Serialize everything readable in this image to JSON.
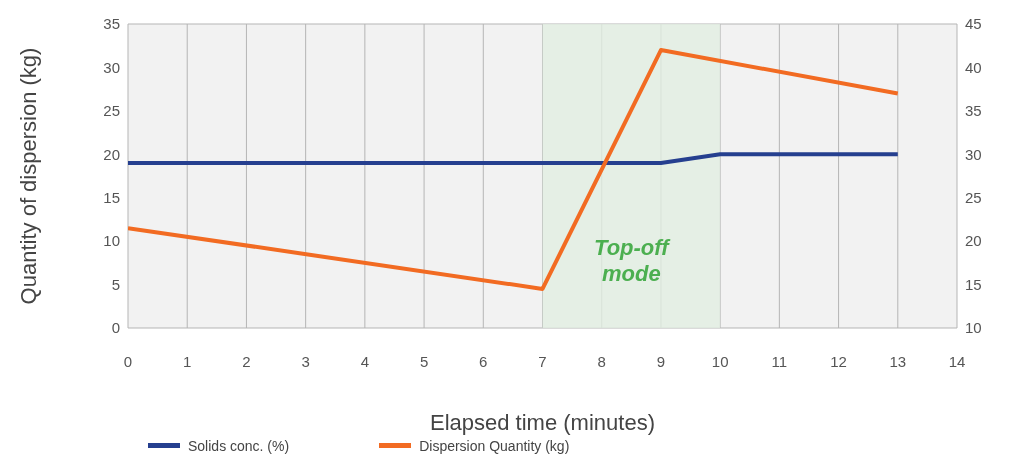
{
  "chart_data": {
    "type": "line",
    "xlabel": "Elapsed time  (minutes)",
    "ylabel": "Quantity of dispersion (kg)",
    "xlim": [
      0,
      14
    ],
    "xticks": [
      0,
      1,
      2,
      3,
      4,
      5,
      6,
      7,
      8,
      9,
      10,
      11,
      12,
      13,
      14
    ],
    "ylim": [
      0,
      35
    ],
    "yticks": [
      0,
      5,
      10,
      15,
      20,
      25,
      30,
      35
    ],
    "y2lim": [
      10,
      45
    ],
    "y2ticks": [
      10,
      15,
      20,
      25,
      30,
      35,
      40,
      45
    ],
    "series": [
      {
        "name": "Solids conc. (%)",
        "color": "#253f8f",
        "axis": "y2",
        "x": [
          0,
          9,
          10,
          13
        ],
        "values": [
          29,
          29,
          30,
          30
        ]
      },
      {
        "name": "Dispersion Quantity (kg)",
        "color": "#f26b22",
        "x": [
          0,
          7,
          9,
          13
        ],
        "values": [
          11.5,
          4.5,
          32,
          27
        ]
      }
    ],
    "bands": [
      {
        "axis": "x",
        "from": 7,
        "to": 10,
        "label": "Top-off mode",
        "color": "#e1eee1"
      }
    ],
    "grid": true,
    "legend": "bottom left",
    "line_style": "solid"
  }
}
